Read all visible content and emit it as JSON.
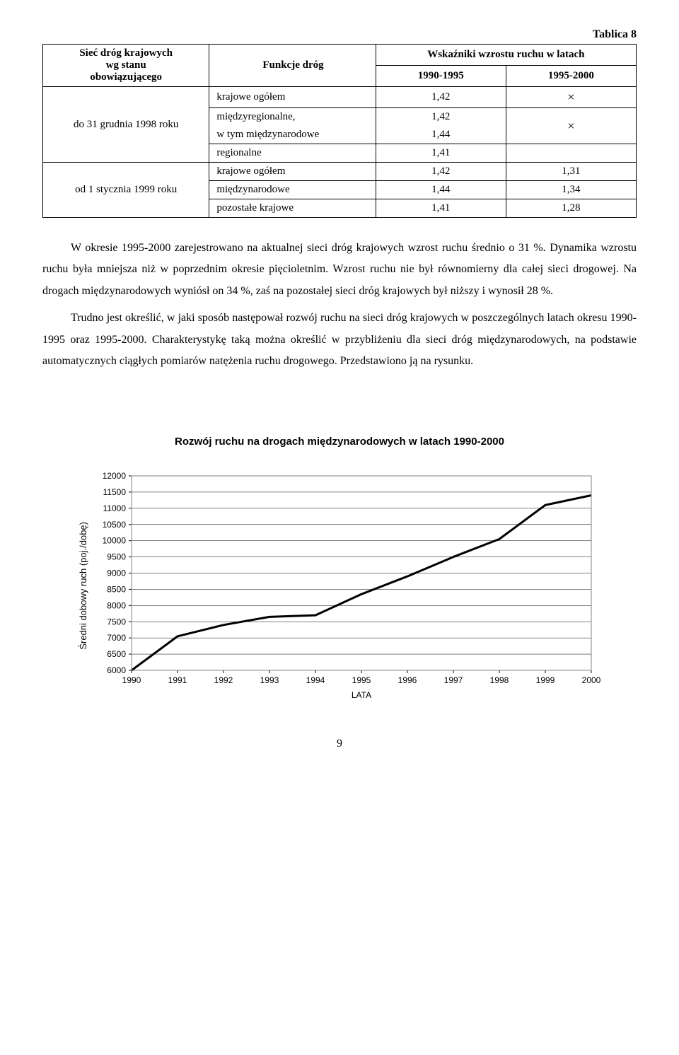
{
  "tablica_label": "Tablica 8",
  "table": {
    "headers": {
      "network": "Sieć dróg krajowych\nwg stanu\nobowiązującego",
      "func": "Funkcje dróg",
      "growth": "Wskaźniki wzrostu ruchu w latach",
      "period1": "1990-1995",
      "period2": "1995-2000"
    },
    "group1_label": "do 31 grudnia 1998 roku",
    "group2_label": "od 1 stycznia 1999 roku",
    "g1": {
      "r1": {
        "func": "krajowe ogółem",
        "v1": "1,42",
        "v2": "×"
      },
      "r2a": {
        "func": "międzyregionalne,",
        "v1a": "1,42"
      },
      "r2b": {
        "func": "w tym międzynarodowe",
        "v1b": "1,44",
        "v2": "×"
      },
      "r3": {
        "func": "regionalne",
        "v1": "1,41",
        "v2": ""
      }
    },
    "g2": {
      "r1": {
        "func": "krajowe ogółem",
        "v1": "1,42",
        "v2": "1,31"
      },
      "r2": {
        "func": "międzynarodowe",
        "v1": "1,44",
        "v2": "1,34"
      },
      "r3": {
        "func": "pozostałe krajowe",
        "v1": "1,41",
        "v2": "1,28"
      }
    }
  },
  "para1": "W okresie 1995-2000 zarejestrowano na aktualnej sieci dróg krajowych wzrost ruchu średnio o 31 %. Dynamika wzrostu ruchu była mniejsza niż w poprzednim okresie pięcioletnim. Wzrost ruchu nie był równomierny dla całej sieci drogowej. Na drogach międzynarodowych wyniósł on 34 %, zaś na pozostałej sieci dróg krajowych był niższy i wynosił 28 %.",
  "para2": "Trudno jest określić, w jaki sposób następował rozwój ruchu na sieci dróg krajowych w poszczególnych latach okresu 1990-1995 oraz 1995-2000. Charakterystykę taką można określić w przybliżeniu dla sieci dróg międzynarodowych, na podstawie automatycznych ciągłych pomiarów natężenia ruchu drogowego. Przedstawiono ją na rysunku.",
  "chart": {
    "title": "Rozwój ruchu na drogach międzynarodowych w latach 1990-2000",
    "ylabel": "Średni dobowy ruch (poj./dobę)",
    "xlabel": "LATA",
    "type": "line",
    "years": [
      1990,
      1991,
      1992,
      1993,
      1994,
      1995,
      1996,
      1997,
      1998,
      1999,
      2000
    ],
    "values": [
      6000,
      7050,
      7400,
      7650,
      7700,
      8350,
      8900,
      9500,
      10050,
      11100,
      11400
    ],
    "ylim": [
      6000,
      12000
    ],
    "ytick_step": 500,
    "line_color": "#000000",
    "line_width": 3,
    "grid_color": "#000000",
    "background_color": "#ffffff",
    "plot_border_color": "#808080",
    "label_fontsize": 12,
    "axis_font": "Arial"
  },
  "page_number": "9"
}
